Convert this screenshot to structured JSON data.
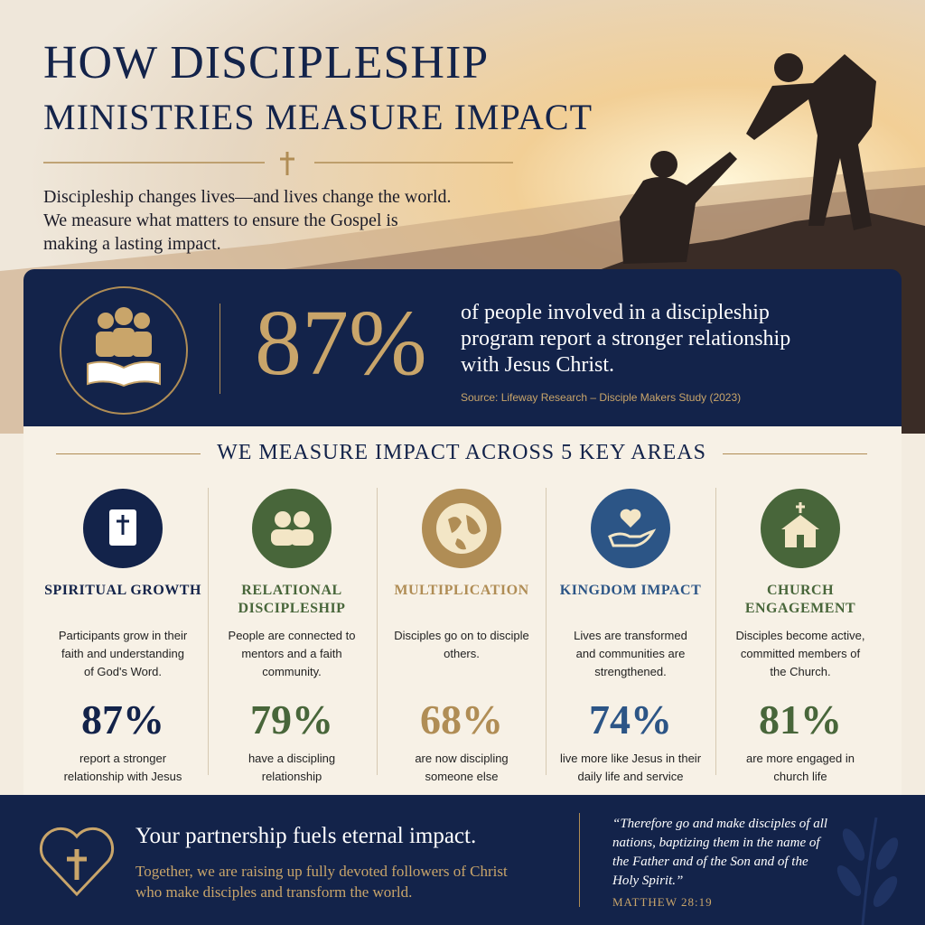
{
  "header": {
    "title_line1": "HOW DISCIPLESHIP",
    "title_line2": "MINISTRIES MEASURE IMPACT",
    "intro_lines": [
      "Discipleship changes lives—and lives change the world.",
      "We measure what matters to ensure the Gospel is",
      "making a lasting impact."
    ]
  },
  "highlight": {
    "stat": "87%",
    "text_lines": [
      "of people involved in a discipleship",
      "program report a stronger relationship",
      "with Jesus Christ."
    ],
    "source": "Source: Lifeway Research – Disciple Makers Study (2023)"
  },
  "areas": {
    "heading": "WE MEASURE IMPACT ACROSS 5 KEY AREAS",
    "items": [
      {
        "title_lines": [
          "SPIRITUAL GROWTH"
        ],
        "description": "Participants grow in their faith and understanding of God's Word.",
        "stat": "87%",
        "caption": "report a stronger relationship with Jesus"
      },
      {
        "title_lines": [
          "RELATIONAL",
          "DISCIPLESHIP"
        ],
        "description": "People are connected to mentors and a faith community.",
        "stat": "79%",
        "caption": "have a discipling relationship"
      },
      {
        "title_lines": [
          "MULTIPLICATION"
        ],
        "description": "Disciples go on to disciple others.",
        "stat": "68%",
        "caption": "are now discipling someone else"
      },
      {
        "title_lines": [
          "KINGDOM IMPACT"
        ],
        "description": "Lives are transformed and communities are strengthened.",
        "stat": "74%",
        "caption": "live more like Jesus in their daily life and service"
      },
      {
        "title_lines": [
          "CHURCH",
          "ENGAGEMENT"
        ],
        "description": "Disciples become active, committed members of the Church.",
        "stat": "81%",
        "caption": "are more engaged in church life"
      }
    ]
  },
  "footer": {
    "headline": "Your partnership fuels eternal impact.",
    "subtext_lines": [
      "Together, we are raising up fully devoted followers of Christ",
      "who make disciples and transform the world."
    ],
    "quote_lines": [
      "“Therefore go and make disciples of all",
      "nations, baptizing them in the name of",
      "the Father and of the Son and of the",
      "Holy Spirit.”"
    ],
    "reference": "MATTHEW 28:19"
  }
}
